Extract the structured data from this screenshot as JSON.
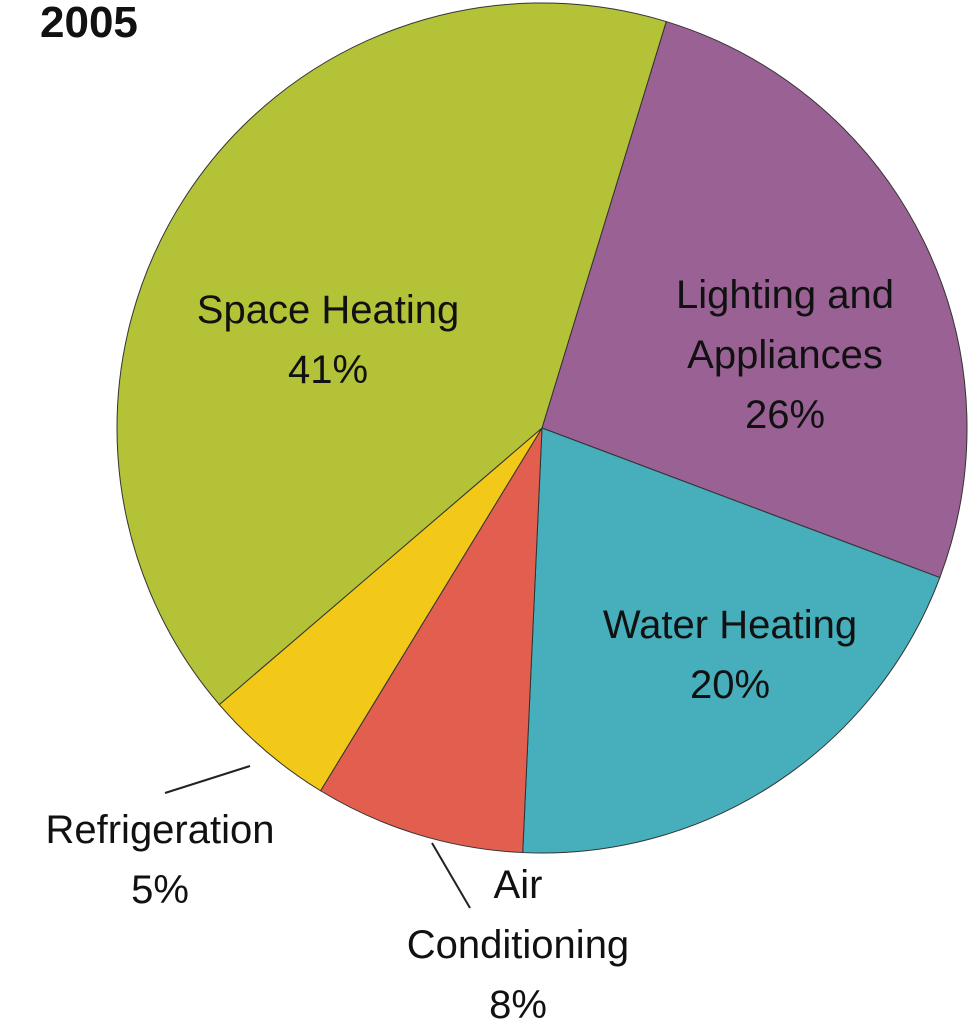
{
  "chart_data": {
    "type": "pie",
    "title": "2005",
    "categories": [
      "Lighting and Appliances",
      "Water Heating",
      "Air Conditioning",
      "Refrigeration",
      "Space Heating"
    ],
    "values": [
      26,
      20,
      8,
      5,
      41
    ],
    "value_labels": [
      "26%",
      "20%",
      "8%",
      "5%",
      "41%"
    ],
    "colors": [
      "#9a6294",
      "#47aebb",
      "#e25f4f",
      "#f2c918",
      "#b3c236"
    ]
  }
}
